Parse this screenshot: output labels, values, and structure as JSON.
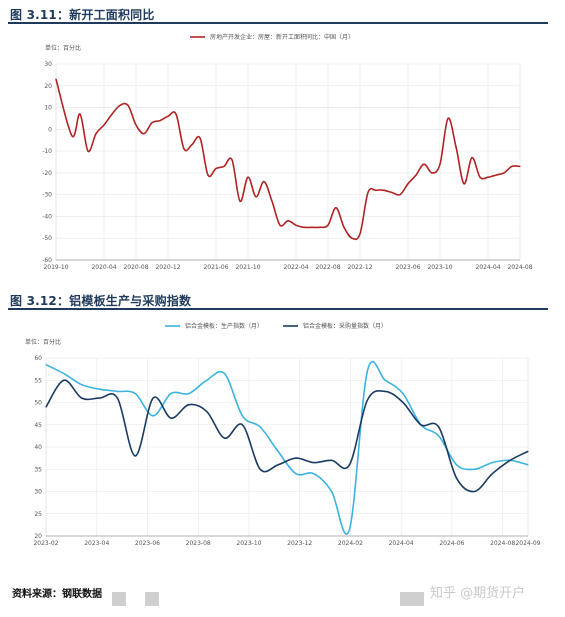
{
  "figure1": {
    "title": "图 3.11：新开工面积同比",
    "unit": "单位：百分比",
    "legend": "房地产开发企业：房屋：新开工面积同比：中国（月）",
    "color": "#b22222",
    "chart_data": {
      "type": "line",
      "ylim": [
        -60,
        30
      ],
      "yticks": [
        30,
        20,
        10,
        0,
        -10,
        -20,
        -30,
        -40,
        -50,
        -60
      ],
      "x_tick_labels": [
        "2019-10",
        "2020-04",
        "2020-08",
        "2020-12",
        "2021-06",
        "2021-10",
        "2022-04",
        "2022-08",
        "2022-12",
        "2023-06",
        "2023-10",
        "2024-04",
        "2024-08"
      ],
      "x_range": [
        "2019-10",
        "2024-08"
      ],
      "series": [
        {
          "x": [
            "2019-10",
            "2019-12",
            "2020-01",
            "2020-02",
            "2020-03",
            "2020-04",
            "2020-05",
            "2020-06",
            "2020-07",
            "2020-08",
            "2020-09",
            "2020-10",
            "2020-11",
            "2020-12",
            "2021-01",
            "2021-02",
            "2021-03",
            "2021-04",
            "2021-05",
            "2021-06",
            "2021-07",
            "2021-08",
            "2021-09",
            "2021-10",
            "2021-11",
            "2021-12",
            "2022-01",
            "2022-02",
            "2022-03",
            "2022-04",
            "2022-05",
            "2022-06",
            "2022-07",
            "2022-08",
            "2022-09",
            "2022-10",
            "2022-11",
            "2022-12",
            "2023-01",
            "2023-02",
            "2023-03",
            "2023-04",
            "2023-05",
            "2023-06",
            "2023-07",
            "2023-08",
            "2023-09",
            "2023-10",
            "2023-11",
            "2023-12",
            "2024-01",
            "2024-02",
            "2024-03",
            "2024-04",
            "2024-05",
            "2024-06",
            "2024-07",
            "2024-08"
          ],
          "values": [
            23,
            -3,
            7,
            -10,
            -2,
            2,
            7,
            11,
            11,
            2,
            -2,
            3,
            4,
            6,
            7,
            -9,
            -7,
            -4,
            -21,
            -18,
            -17,
            -14,
            -33,
            -22,
            -31,
            -24,
            -33,
            -44,
            -42,
            -44,
            -45,
            -45,
            -45,
            -44,
            -36,
            -45,
            -50,
            -48,
            -29,
            -28,
            -28,
            -29,
            -30,
            -25,
            -21,
            -16,
            -20,
            -16,
            5,
            -8,
            -25,
            -13,
            -22,
            -22,
            -21,
            -20,
            -17,
            -17
          ]
        }
      ]
    }
  },
  "figure2": {
    "title": "图 3.12：铝模板生产与采购指数",
    "unit": "单位：百分比",
    "chart_data": {
      "type": "line",
      "ylim": [
        20,
        60
      ],
      "yticks": [
        60,
        55,
        50,
        45,
        40,
        35,
        30,
        25,
        20
      ],
      "x_tick_labels": [
        "2023-02",
        "2023-04",
        "2023-06",
        "2023-08",
        "2023-10",
        "2023-12",
        "2024-02",
        "2024-04",
        "2024-06",
        "2024-08",
        "2024-09"
      ],
      "x_range": [
        "2023-02",
        "2024-09"
      ],
      "series": [
        {
          "name": "铝合金模板：生产指数（月）",
          "color": "#3bb3df",
          "values": [
            58.5,
            56.5,
            54,
            53,
            52.5,
            52,
            47,
            52,
            52,
            55,
            56.5,
            47,
            44.5,
            39,
            34,
            34,
            30,
            21.5,
            57,
            55,
            52,
            45,
            42.5,
            36,
            35,
            36.5,
            37,
            36
          ]
        },
        {
          "name": "铝合金模板：采购量指数（月）",
          "color": "#1a3b63",
          "values": [
            49,
            55,
            51,
            51,
            51,
            38,
            51,
            46.5,
            49.5,
            48,
            42,
            45,
            35,
            36,
            37.5,
            36.5,
            37,
            36,
            50.5,
            52.5,
            50,
            45,
            44.5,
            33,
            30,
            34,
            37,
            39
          ]
        }
      ]
    }
  },
  "footer": {
    "source": "资料来源：钢联数据",
    "watermark": "知乎 @期货开户"
  }
}
